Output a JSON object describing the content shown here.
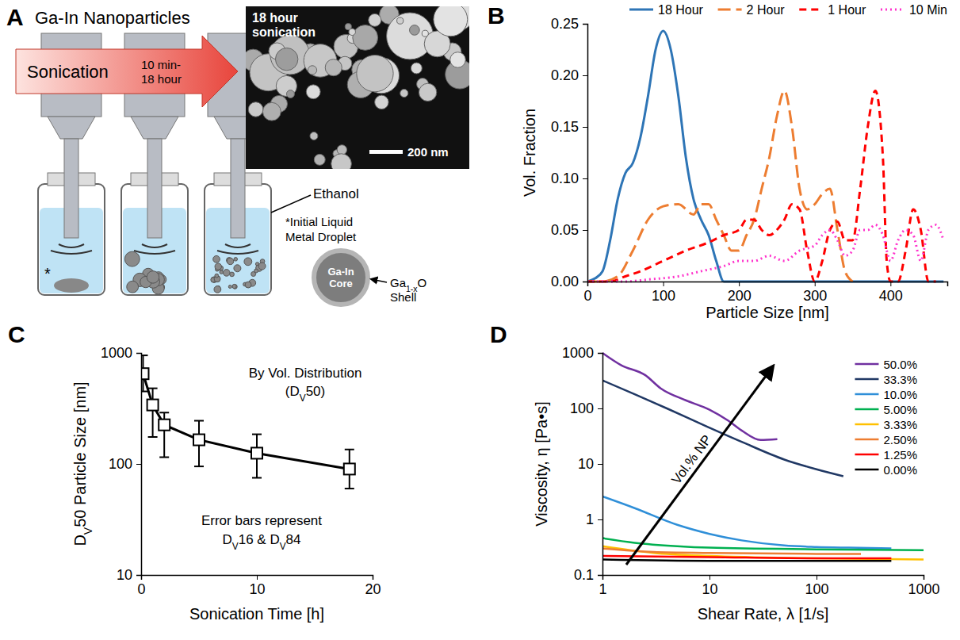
{
  "diagram": {
    "panel": "A",
    "title": "Ga-In Nanoparticles",
    "arrow_label": "Sonication",
    "arrow_time": [
      "10 min-",
      "18 hour"
    ],
    "image_label": [
      "18 hour",
      "sonication"
    ],
    "scale_bar": "200 nm",
    "solvent": "Ethanol",
    "asterisk": "*",
    "droplet_note": [
      "*Initial Liquid",
      "Metal Droplet"
    ],
    "core": [
      "Ga-In",
      "Core"
    ],
    "shell": [
      [
        "Ga",
        {
          "sub": "1-x"
        },
        "O"
      ],
      "Shell"
    ]
  },
  "chart_data": [
    {
      "panel": "B",
      "type": "line",
      "x_label": "Particle Size [nm]",
      "y_label": "Vol. Fraction",
      "xlim": [
        0,
        475
      ],
      "xticks": [
        0,
        100,
        200,
        300,
        400
      ],
      "ylim": [
        0,
        0.25
      ],
      "yticks": [
        {
          "value": 0,
          "label": "0.00"
        },
        0.05,
        {
          "value": 0.1,
          "label": "0.10"
        },
        0.15,
        {
          "value": 0.2,
          "label": "0.20"
        },
        0.25
      ],
      "legend": "top",
      "series": [
        {
          "name": "18 Hour",
          "color": "#2e75b6",
          "line_style": "solid",
          "x": [
            0,
            10,
            20,
            30,
            40,
            50,
            60,
            70,
            80,
            90,
            100,
            110,
            120,
            130,
            140,
            150,
            160,
            170,
            180,
            200,
            250,
            300,
            350,
            400,
            450,
            470
          ],
          "values": [
            0,
            0.003,
            0.01,
            0.04,
            0.08,
            0.105,
            0.115,
            0.14,
            0.18,
            0.225,
            0.243,
            0.225,
            0.18,
            0.12,
            0.08,
            0.06,
            0.045,
            0.02,
            0,
            0,
            0,
            0,
            0,
            0,
            0,
            0
          ]
        },
        {
          "name": "2 Hour",
          "color": "#ed7d31",
          "line_style": "long_dashed",
          "x": [
            0,
            20,
            40,
            60,
            80,
            100,
            120,
            140,
            150,
            160,
            170,
            180,
            190,
            200,
            210,
            220,
            230,
            240,
            250,
            260,
            270,
            280,
            290,
            300,
            310,
            320,
            330,
            340,
            350
          ],
          "values": [
            0,
            0,
            0.005,
            0.03,
            0.06,
            0.073,
            0.075,
            0.065,
            0.075,
            0.075,
            0.06,
            0.045,
            0.03,
            0.03,
            0.045,
            0.06,
            0.09,
            0.12,
            0.16,
            0.185,
            0.15,
            0.09,
            0.07,
            0.075,
            0.085,
            0.09,
            0.05,
            0.01,
            0
          ]
        },
        {
          "name": "1 Hour",
          "color": "#ff0000",
          "line_style": "dashed",
          "x": [
            0,
            30,
            50,
            70,
            100,
            130,
            160,
            180,
            200,
            210,
            220,
            230,
            240,
            250,
            260,
            270,
            280,
            290,
            300,
            310,
            320,
            330,
            340,
            350,
            360,
            370,
            380,
            390,
            395,
            400,
            410,
            420,
            430,
            440,
            450,
            460
          ],
          "values": [
            0,
            0,
            0.005,
            0.01,
            0.02,
            0.03,
            0.038,
            0.045,
            0.05,
            0.06,
            0.06,
            0.05,
            0.045,
            0.05,
            0.06,
            0.075,
            0.07,
            0.03,
            0,
            0.02,
            0.05,
            0.058,
            0.04,
            0.04,
            0.09,
            0.15,
            0.185,
            0.12,
            0.02,
            0,
            0,
            0.03,
            0.07,
            0.05,
            0,
            0
          ]
        },
        {
          "name": "10 Min",
          "color": "#ff33cc",
          "line_style": "dotted",
          "x": [
            0,
            50,
            80,
            120,
            150,
            180,
            200,
            220,
            240,
            260,
            280,
            300,
            310,
            320,
            330,
            340,
            350,
            360,
            370,
            380,
            390,
            400,
            410,
            420,
            430,
            440,
            450,
            460,
            470
          ],
          "values": [
            0,
            0,
            0.002,
            0.005,
            0.01,
            0.015,
            0.02,
            0.02,
            0.025,
            0.02,
            0.03,
            0.035,
            0.045,
            0.05,
            0.04,
            0.025,
            0.03,
            0.05,
            0.05,
            0.055,
            0.045,
            0.02,
            0.04,
            0.05,
            0.045,
            0.02,
            0.05,
            0.055,
            0.04
          ]
        }
      ]
    },
    {
      "panel": "C",
      "type": "line",
      "marker": "square",
      "color": "#000000",
      "x_label": "Sonication Time [h]",
      "y_label": [
        "D",
        {
          "sub": "V"
        },
        "50 Particle Size [nm]"
      ],
      "log": "y",
      "xlim": [
        0,
        20
      ],
      "xticks": [
        0,
        10,
        20
      ],
      "ylim": [
        10,
        1000
      ],
      "yticks": [
        10,
        100,
        1000
      ],
      "x": [
        0.17,
        1,
        2,
        5,
        10,
        18
      ],
      "values": [
        650,
        340,
        225,
        165,
        125,
        90
      ],
      "error_low": [
        450,
        175,
        115,
        95,
        75,
        60
      ],
      "error_high": [
        950,
        480,
        290,
        245,
        185,
        135
      ],
      "annotations": [
        [
          "By Vol. Distribution"
        ],
        [
          "(D",
          {
            "sub": "V"
          },
          "50)"
        ],
        [
          "Error bars represent"
        ],
        [
          "D",
          {
            "sub": "V"
          },
          "16 & D",
          {
            "sub": "V"
          },
          "84"
        ]
      ]
    },
    {
      "panel": "D",
      "type": "line",
      "x_label": "Shear Rate, λ [1/s]",
      "y_label": "Viscosity, η [Pa•s]",
      "log": true,
      "xlim": [
        1,
        1000
      ],
      "xticks": [
        1,
        10,
        100,
        1000
      ],
      "ylim": [
        0.1,
        1000
      ],
      "yticks": [
        0.1,
        1,
        10,
        100,
        1000
      ],
      "legend": "top-right",
      "annotations": [
        "Vol.% NP"
      ],
      "series": [
        {
          "name": "50.0%",
          "color": "#7030a0",
          "x": [
            1,
            1.5,
            2.5,
            3.5,
            6,
            10,
            15,
            20,
            30,
            43
          ],
          "values": [
            1000,
            600,
            400,
            230,
            140,
            95,
            60,
            40,
            27,
            28
          ]
        },
        {
          "name": "33.3%",
          "color": "#203864",
          "x": [
            1,
            2,
            4,
            10,
            20,
            50,
            100,
            178
          ],
          "values": [
            320,
            180,
            100,
            45,
            25,
            12,
            8,
            6
          ]
        },
        {
          "name": "10.0%",
          "color": "#2f8fd8",
          "x": [
            1,
            2,
            5,
            10,
            20,
            50,
            100,
            200,
            500
          ],
          "values": [
            2.6,
            1.6,
            0.8,
            0.55,
            0.42,
            0.34,
            0.32,
            0.31,
            0.3
          ]
        },
        {
          "name": "5.00%",
          "color": "#00b050",
          "x": [
            1,
            2,
            5,
            10,
            100,
            1000
          ],
          "values": [
            0.46,
            0.38,
            0.33,
            0.31,
            0.29,
            0.28
          ]
        },
        {
          "name": "3.33%",
          "color": "#ffc000",
          "x": [
            1,
            3,
            10,
            100,
            1000
          ],
          "values": [
            0.33,
            0.25,
            0.22,
            0.2,
            0.19
          ]
        },
        {
          "name": "2.50%",
          "color": "#ed7d31",
          "x": [
            1,
            3,
            10,
            100,
            260
          ],
          "values": [
            0.3,
            0.26,
            0.25,
            0.24,
            0.24
          ]
        },
        {
          "name": "1.25%",
          "color": "#ff0000",
          "x": [
            1,
            10,
            100,
            500
          ],
          "values": [
            0.22,
            0.21,
            0.2,
            0.2
          ]
        },
        {
          "name": "0.00%",
          "color": "#000000",
          "x": [
            1,
            10,
            100,
            500
          ],
          "values": [
            0.19,
            0.18,
            0.18,
            0.18
          ]
        }
      ]
    }
  ]
}
